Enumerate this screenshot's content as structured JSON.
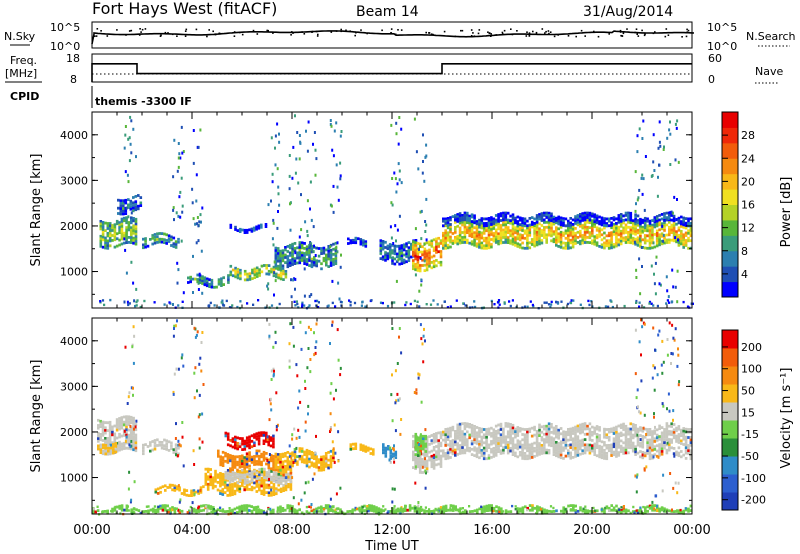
{
  "header": {
    "station": "Fort Hays West (fitACF)",
    "beam": "Beam 14",
    "date": "31/Aug/2014"
  },
  "summary": {
    "nsky_label": "N.Sky",
    "nsearch_label": "N.Search",
    "noise_ticks_left": [
      "10^5",
      "10^0"
    ],
    "noise_ticks_right": [
      "10^5",
      "10^0"
    ],
    "freq_label_1": "Freq.",
    "freq_label_2": "[MHz]",
    "freq_ticks": [
      "18",
      "8"
    ],
    "nave_label": "Nave",
    "nave_ticks": [
      "60",
      "0"
    ],
    "cpid_label": "CPID",
    "cpid_value": "themis -3300 IF",
    "freq_steps": [
      {
        "from": 0.0,
        "to": 1.8,
        "value": 14.5
      },
      {
        "from": 1.8,
        "to": 14.0,
        "value": 11.0
      },
      {
        "from": 14.0,
        "to": 24.0,
        "value": 14.5
      }
    ]
  },
  "chart_data": [
    {
      "type": "heatmap",
      "name": "power",
      "ylabel": "Slant Range [km]",
      "xlabel": "",
      "x_ticks": [
        "00:00",
        "04:00",
        "08:00",
        "12:00",
        "16:00",
        "20:00",
        "00:00"
      ],
      "y_ticks": [
        "1000",
        "2000",
        "3000",
        "4000"
      ],
      "y_tick_values": [
        1000,
        2000,
        3000,
        4000
      ],
      "ylim": [
        200,
        4500
      ],
      "xlim": [
        0,
        24
      ],
      "colorbar_label": "Power [dB]",
      "colorbar_ticks": [
        "4",
        "8",
        "12",
        "16",
        "20",
        "24",
        "28"
      ],
      "colorbar_colors": [
        "#0000ff",
        "#1f4fb4",
        "#2c7fb0",
        "#3a9c7a",
        "#58b63a",
        "#b4d226",
        "#f0e020",
        "#f8b818",
        "#f58a10",
        "#f25c0a",
        "#ef2808",
        "#e80000"
      ],
      "bands": [
        {
          "t0": 0.3,
          "t1": 1.8,
          "r0": 1550,
          "r1": 2150,
          "level": 0.45
        },
        {
          "t0": 1.0,
          "t1": 2.0,
          "r0": 2300,
          "r1": 2650,
          "level": 0.2
        },
        {
          "t0": 2.0,
          "t1": 3.5,
          "r0": 1550,
          "r1": 1800,
          "level": 0.35
        },
        {
          "t0": 3.8,
          "t1": 5.5,
          "r0": 700,
          "r1": 900,
          "level": 0.35
        },
        {
          "t0": 5.5,
          "t1": 7.8,
          "r0": 850,
          "r1": 1100,
          "level": 0.6
        },
        {
          "t0": 5.5,
          "t1": 7.0,
          "r0": 1900,
          "r1": 2000,
          "level": 0.12
        },
        {
          "t0": 7.3,
          "t1": 9.8,
          "r0": 1100,
          "r1": 1600,
          "level": 0.3
        },
        {
          "t0": 10.2,
          "t1": 11.0,
          "r0": 1550,
          "r1": 1700,
          "level": 0.15
        },
        {
          "t0": 11.5,
          "t1": 13.0,
          "r0": 1200,
          "r1": 1650,
          "level": 0.2
        },
        {
          "t0": 12.8,
          "t1": 14.0,
          "r0": 1050,
          "r1": 1700,
          "level": 0.85
        },
        {
          "t0": 14.0,
          "t1": 24.0,
          "r0": 1550,
          "r1": 2100,
          "level": 0.7
        },
        {
          "t0": 14.0,
          "t1": 24.0,
          "r0": 2050,
          "r1": 2250,
          "level": 0.1
        }
      ]
    },
    {
      "type": "heatmap",
      "name": "velocity",
      "ylabel": "Slant Range [km]",
      "xlabel": "Time UT",
      "x_ticks": [
        "00:00",
        "04:00",
        "08:00",
        "12:00",
        "16:00",
        "20:00",
        "00:00"
      ],
      "y_ticks": [
        "1000",
        "2000",
        "3000",
        "4000"
      ],
      "y_tick_values": [
        1000,
        2000,
        3000,
        4000
      ],
      "ylim": [
        200,
        4500
      ],
      "xlim": [
        0,
        24
      ],
      "colorbar_label": "Velocity [m s⁻¹]",
      "colorbar_ticks": [
        "200",
        "100",
        "50",
        "15",
        "-15",
        "-50",
        "-100",
        "-200"
      ],
      "colorbar_colors": [
        "#1f3fb8",
        "#2c5fd0",
        "#2f8cc8",
        "#2a8f3a",
        "#6fcf4a",
        "#c8c8c0",
        "#f8b818",
        "#f58a10",
        "#f25c0a",
        "#e80000"
      ],
      "bands": [
        {
          "t0": 0.2,
          "t1": 1.8,
          "r0": 1550,
          "r1": 2300,
          "color": "#c8c8c0"
        },
        {
          "t0": 0.2,
          "t1": 1.0,
          "r0": 1550,
          "r1": 1800,
          "color": "#f8b818"
        },
        {
          "t0": 2.0,
          "t1": 3.5,
          "r0": 1550,
          "r1": 1800,
          "color": "#c8c8c0"
        },
        {
          "t0": 2.5,
          "t1": 4.5,
          "r0": 650,
          "r1": 800,
          "color": "#f8b818"
        },
        {
          "t0": 4.5,
          "t1": 8.0,
          "r0": 650,
          "r1": 1150,
          "color": "#f8b818"
        },
        {
          "t0": 5.3,
          "t1": 8.0,
          "r0": 900,
          "r1": 1150,
          "color": "#c8c8c0"
        },
        {
          "t0": 5.0,
          "t1": 7.5,
          "r0": 1200,
          "r1": 1550,
          "color": "#f58a10"
        },
        {
          "t0": 5.3,
          "t1": 7.3,
          "r0": 1650,
          "r1": 1950,
          "color": "#e80000"
        },
        {
          "t0": 7.3,
          "t1": 9.7,
          "r0": 1200,
          "r1": 1600,
          "color": "#f8b818"
        },
        {
          "t0": 10.3,
          "t1": 11.3,
          "r0": 1550,
          "r1": 1700,
          "color": "#f8b818"
        },
        {
          "t0": 11.6,
          "t1": 12.2,
          "r0": 1400,
          "r1": 1700,
          "color": "#2f8cc8"
        },
        {
          "t0": 12.8,
          "t1": 14.0,
          "r0": 1150,
          "r1": 1950,
          "color": "#c8c8c0"
        },
        {
          "t0": 12.9,
          "t1": 13.4,
          "r0": 1500,
          "r1": 2000,
          "color": "#6fcf4a"
        },
        {
          "t0": 14.0,
          "t1": 24.0,
          "r0": 1450,
          "r1": 2150,
          "color": "#c8c8c0"
        },
        {
          "t0": 0.0,
          "t1": 24.0,
          "r0": 200,
          "r1": 350,
          "color": "#6fcf4a"
        }
      ]
    }
  ]
}
